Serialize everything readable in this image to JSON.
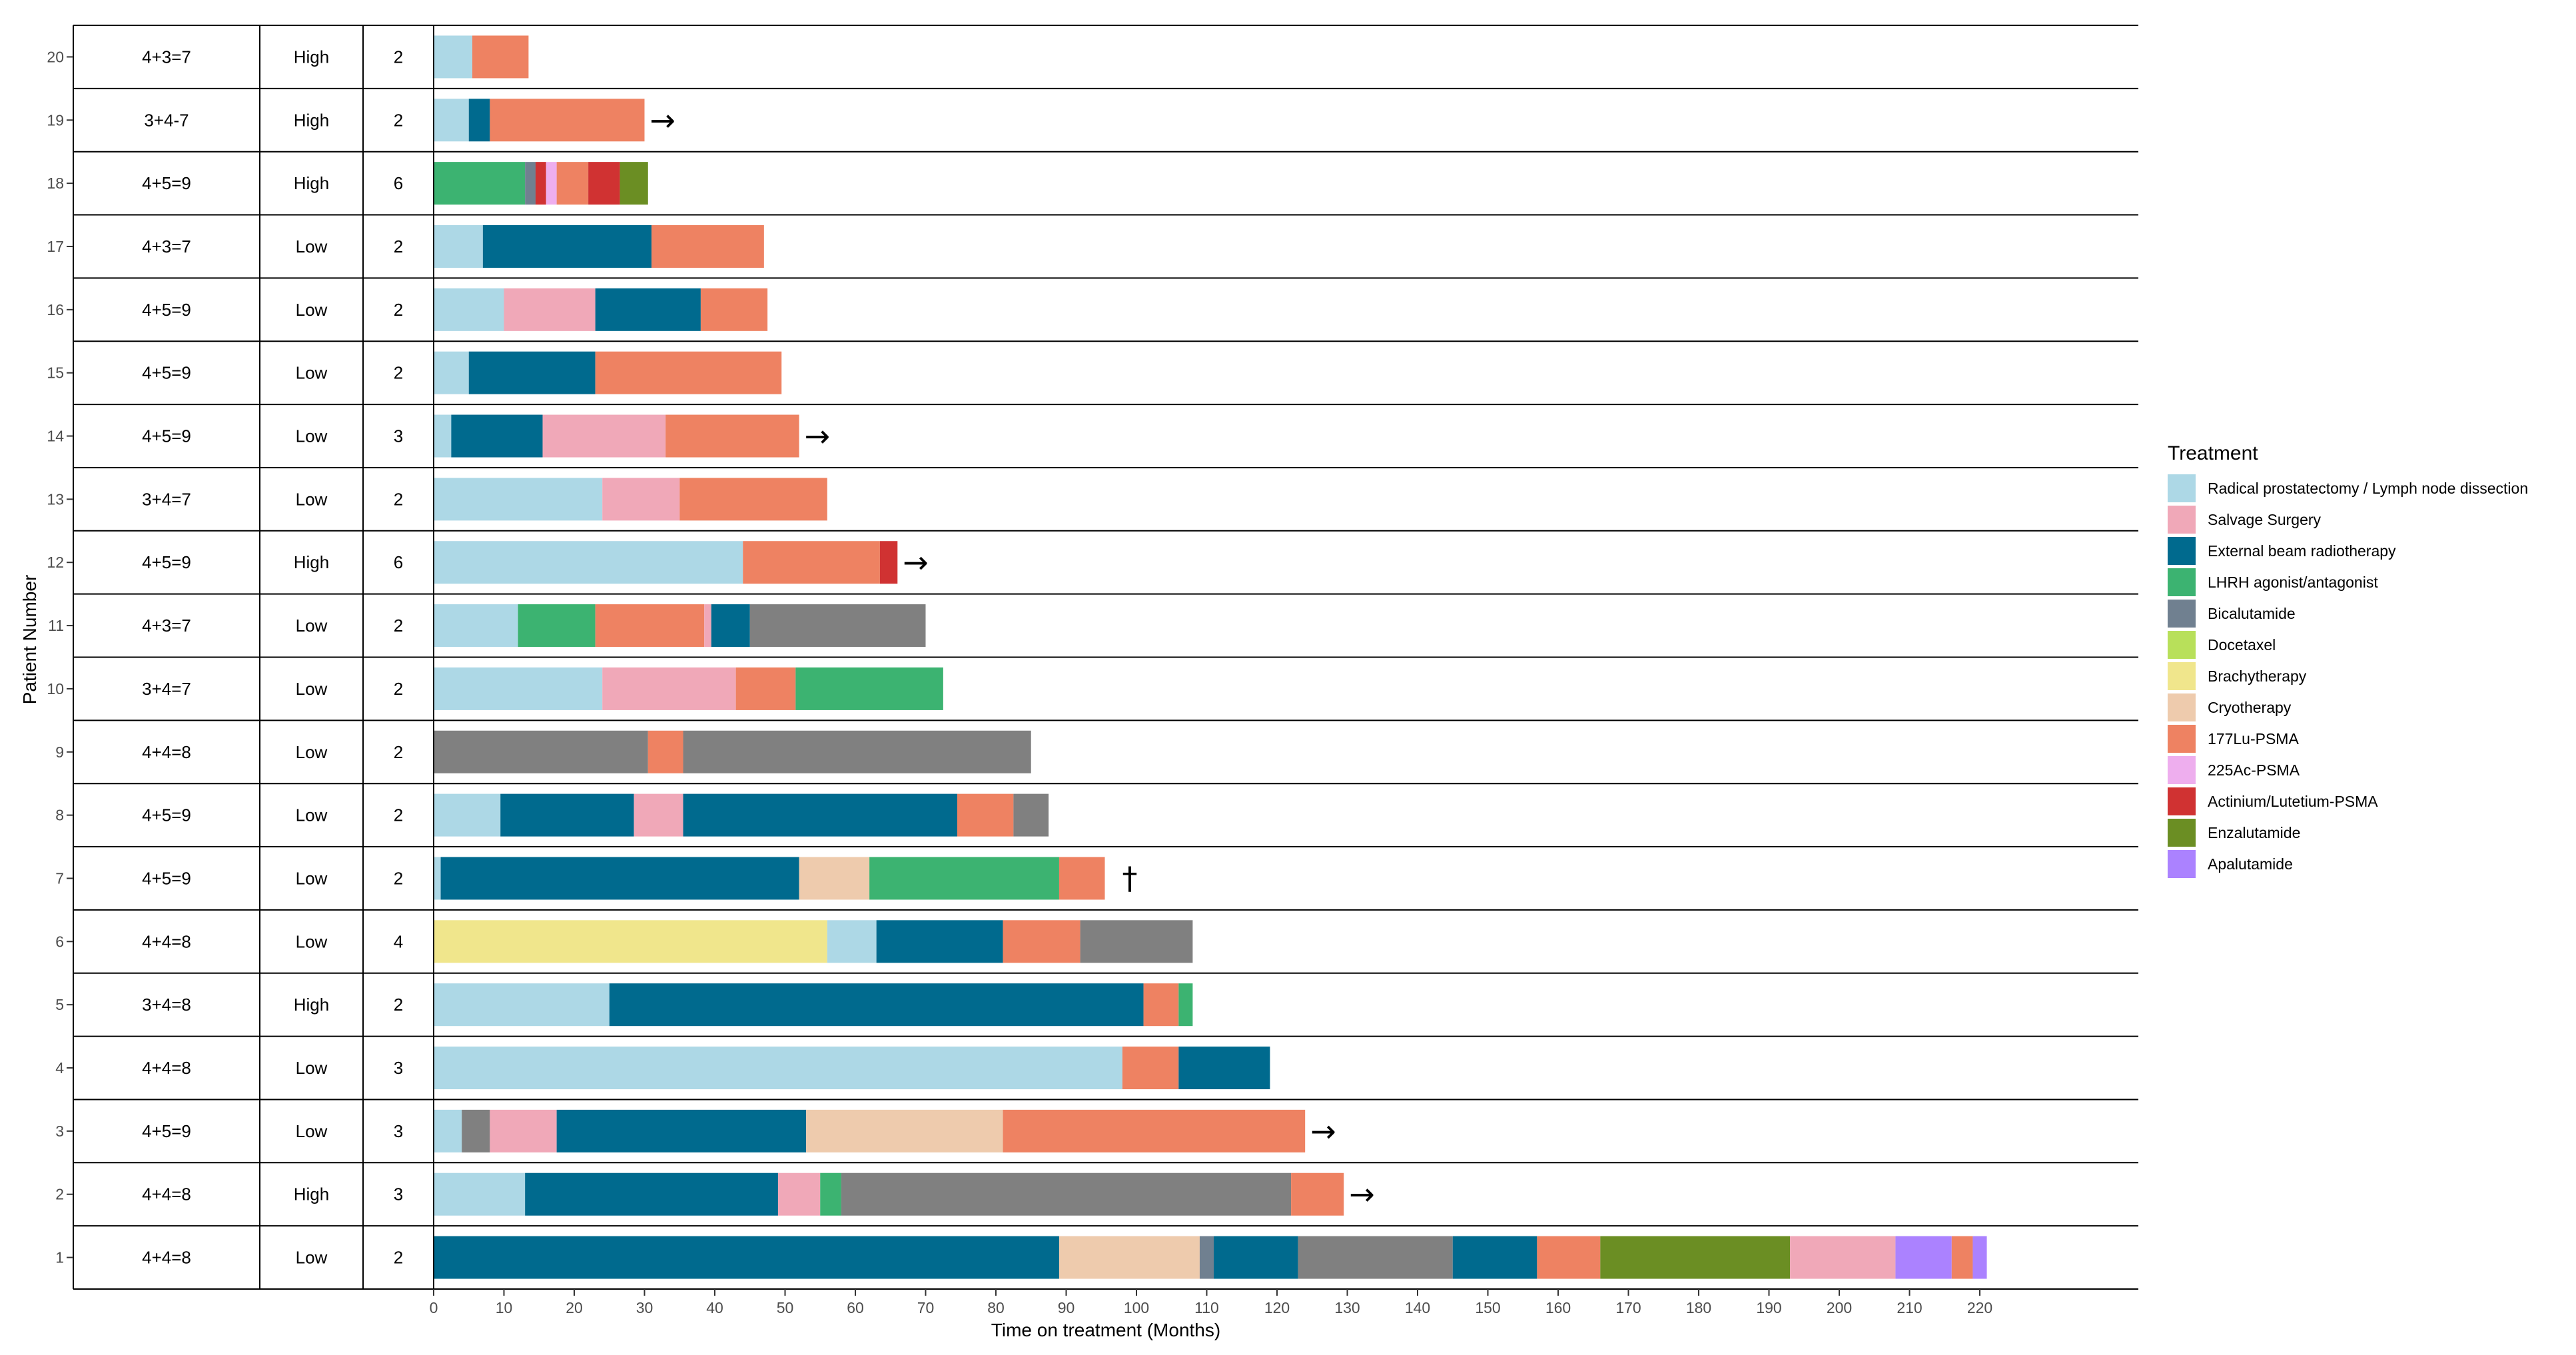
{
  "chart_data": {
    "type": "bar",
    "subtype": "horizontal-stacked-swimmer",
    "title": "",
    "xlabel": "Time on treatment (Months)",
    "ylabel": "Patient Number",
    "xlim": [
      0,
      220
    ],
    "x_ticks": [
      0,
      10,
      20,
      30,
      40,
      50,
      60,
      70,
      80,
      90,
      100,
      110,
      120,
      130,
      140,
      150,
      160,
      170,
      180,
      190,
      200,
      210,
      220
    ],
    "grid": false,
    "legend": {
      "title": "Treatment",
      "placement": "right",
      "entries": [
        {
          "name": "Radical prostatectomy / Lymph node dissection",
          "color": "#ADD8E6"
        },
        {
          "name": "Salvage Surgery",
          "color": "#F0A8B8"
        },
        {
          "name": "External beam radiotherapy",
          "color": "#006A8E"
        },
        {
          "name": "LHRH agonist/antagonist",
          "color": "#3CB371"
        },
        {
          "name": "Bicalutamide",
          "color": "#708090"
        },
        {
          "name": "Docetaxel",
          "color": "#B8E05A"
        },
        {
          "name": "Brachytherapy",
          "color": "#F0E68C"
        },
        {
          "name": "Cryotherapy",
          "color": "#EECBAD"
        },
        {
          "name": "177Lu-PSMA",
          "color": "#EE8262"
        },
        {
          "name": "225Ac-PSMA",
          "color": "#EEAEEE"
        },
        {
          "name": "Actinium/Lutetium-PSMA",
          "color": "#D03232"
        },
        {
          "name": "Enzalutamide",
          "color": "#6B8E23"
        },
        {
          "name": "Apalutamide",
          "color": "#AB82FF"
        }
      ]
    },
    "extra_colors": {
      "gray_segment": "#808080"
    },
    "patients": [
      {
        "id": "20",
        "gleason": "4+3=7",
        "risk": "High",
        "n": "2",
        "marker": "",
        "segments": [
          [
            0,
            5.5,
            "#ADD8E6"
          ],
          [
            5.5,
            13.5,
            "#EE8262"
          ]
        ]
      },
      {
        "id": "19",
        "gleason": "3+4-7",
        "risk": "High",
        "n": "2",
        "marker": "→",
        "segments": [
          [
            0,
            5,
            "#ADD8E6"
          ],
          [
            5,
            8,
            "#006A8E"
          ],
          [
            8,
            30,
            "#EE8262"
          ]
        ]
      },
      {
        "id": "18",
        "gleason": "4+5=9",
        "risk": "High",
        "n": "6",
        "marker": "",
        "segments": [
          [
            0,
            13,
            "#3CB371"
          ],
          [
            13,
            14.5,
            "#708090"
          ],
          [
            14.5,
            16,
            "#D03232"
          ],
          [
            16,
            17.5,
            "#EEAEEE"
          ],
          [
            17.5,
            22,
            "#EE8262"
          ],
          [
            22,
            26.5,
            "#D03232"
          ],
          [
            26.5,
            30.5,
            "#6B8E23"
          ]
        ]
      },
      {
        "id": "17",
        "gleason": "4+3=7",
        "risk": "Low",
        "n": "2",
        "marker": "",
        "segments": [
          [
            0,
            7,
            "#ADD8E6"
          ],
          [
            7,
            31,
            "#006A8E"
          ],
          [
            31,
            47,
            "#EE8262"
          ]
        ]
      },
      {
        "id": "16",
        "gleason": "4+5=9",
        "risk": "Low",
        "n": "2",
        "marker": "",
        "segments": [
          [
            0,
            10,
            "#ADD8E6"
          ],
          [
            10,
            23,
            "#F0A8B8"
          ],
          [
            23,
            38,
            "#006A8E"
          ],
          [
            38,
            47.5,
            "#EE8262"
          ]
        ]
      },
      {
        "id": "15",
        "gleason": "4+5=9",
        "risk": "Low",
        "n": "2",
        "marker": "",
        "segments": [
          [
            0,
            5,
            "#ADD8E6"
          ],
          [
            5,
            23,
            "#006A8E"
          ],
          [
            23,
            49.5,
            "#EE8262"
          ]
        ]
      },
      {
        "id": "14",
        "gleason": "4+5=9",
        "risk": "Low",
        "n": "3",
        "marker": "→",
        "segments": [
          [
            0,
            2.5,
            "#ADD8E6"
          ],
          [
            2.5,
            15.5,
            "#006A8E"
          ],
          [
            15.5,
            33,
            "#F0A8B8"
          ],
          [
            33,
            52,
            "#EE8262"
          ]
        ]
      },
      {
        "id": "13",
        "gleason": "3+4=7",
        "risk": "Low",
        "n": "2",
        "marker": "",
        "segments": [
          [
            0,
            24,
            "#ADD8E6"
          ],
          [
            24,
            35,
            "#F0A8B8"
          ],
          [
            35,
            56,
            "#EE8262"
          ]
        ]
      },
      {
        "id": "12",
        "gleason": "4+5=9",
        "risk": "High",
        "n": "6",
        "marker": "→",
        "segments": [
          [
            0,
            44,
            "#ADD8E6"
          ],
          [
            44,
            63.5,
            "#EE8262"
          ],
          [
            63.5,
            66,
            "#D03232"
          ]
        ]
      },
      {
        "id": "11",
        "gleason": "4+3=7",
        "risk": "Low",
        "n": "2",
        "marker": "",
        "segments": [
          [
            0,
            12,
            "#ADD8E6"
          ],
          [
            12,
            23,
            "#3CB371"
          ],
          [
            23,
            38.5,
            "#EE8262"
          ],
          [
            38.5,
            39.5,
            "#F0A8B8"
          ],
          [
            39.5,
            45,
            "#006A8E"
          ],
          [
            45,
            70,
            "#808080"
          ]
        ]
      },
      {
        "id": "10",
        "gleason": "3+4=7",
        "risk": "Low",
        "n": "2",
        "marker": "",
        "segments": [
          [
            0,
            24,
            "#ADD8E6"
          ],
          [
            24,
            43,
            "#F0A8B8"
          ],
          [
            43,
            51.5,
            "#EE8262"
          ],
          [
            51.5,
            72.5,
            "#3CB371"
          ]
        ]
      },
      {
        "id": "9",
        "gleason": "4+4=8",
        "risk": "Low",
        "n": "2",
        "marker": "",
        "segments": [
          [
            0,
            30.5,
            "#808080"
          ],
          [
            30.5,
            35.5,
            "#EE8262"
          ],
          [
            35.5,
            85,
            "#808080"
          ]
        ]
      },
      {
        "id": "8",
        "gleason": "4+5=9",
        "risk": "Low",
        "n": "2",
        "marker": "",
        "segments": [
          [
            0,
            9.5,
            "#ADD8E6"
          ],
          [
            9.5,
            28.5,
            "#006A8E"
          ],
          [
            28.5,
            35.5,
            "#F0A8B8"
          ],
          [
            35.5,
            74.5,
            "#006A8E"
          ],
          [
            74.5,
            82.5,
            "#EE8262"
          ],
          [
            82.5,
            87.5,
            "#808080"
          ]
        ]
      },
      {
        "id": "7",
        "gleason": "4+5=9",
        "risk": "Low",
        "n": "2",
        "marker": "†",
        "segments": [
          [
            0,
            1,
            "#ADD8E6"
          ],
          [
            1,
            52,
            "#006A8E"
          ],
          [
            52,
            62,
            "#EECBAD"
          ],
          [
            62,
            89,
            "#3CB371"
          ],
          [
            89,
            95.5,
            "#EE8262"
          ]
        ]
      },
      {
        "id": "6",
        "gleason": "4+4=8",
        "risk": "Low",
        "n": "4",
        "marker": "",
        "segments": [
          [
            0,
            56,
            "#F0E68C"
          ],
          [
            56,
            63,
            "#ADD8E6"
          ],
          [
            63,
            81,
            "#006A8E"
          ],
          [
            81,
            92,
            "#EE8262"
          ],
          [
            92,
            108,
            "#808080"
          ]
        ]
      },
      {
        "id": "5",
        "gleason": "3+4=8",
        "risk": "High",
        "n": "2",
        "marker": "",
        "segments": [
          [
            0,
            25,
            "#ADD8E6"
          ],
          [
            25,
            101,
            "#006A8E"
          ],
          [
            101,
            106,
            "#EE8262"
          ],
          [
            106,
            108,
            "#3CB371"
          ]
        ]
      },
      {
        "id": "4",
        "gleason": "4+4=8",
        "risk": "Low",
        "n": "3",
        "marker": "",
        "segments": [
          [
            0,
            98,
            "#ADD8E6"
          ],
          [
            98,
            106,
            "#EE8262"
          ],
          [
            106,
            119,
            "#006A8E"
          ]
        ]
      },
      {
        "id": "3",
        "gleason": "4+5=9",
        "risk": "Low",
        "n": "3",
        "marker": "→",
        "segments": [
          [
            0,
            4,
            "#ADD8E6"
          ],
          [
            4,
            8,
            "#808080"
          ],
          [
            8,
            17.5,
            "#F0A8B8"
          ],
          [
            17.5,
            53,
            "#006A8E"
          ],
          [
            53,
            81,
            "#EECBAD"
          ],
          [
            81,
            124,
            "#EE8262"
          ]
        ]
      },
      {
        "id": "2",
        "gleason": "4+4=8",
        "risk": "High",
        "n": "3",
        "marker": "→",
        "segments": [
          [
            0,
            13,
            "#ADD8E6"
          ],
          [
            13,
            49,
            "#006A8E"
          ],
          [
            49,
            55,
            "#F0A8B8"
          ],
          [
            55,
            58,
            "#3CB371"
          ],
          [
            58,
            122,
            "#808080"
          ],
          [
            122,
            129.5,
            "#EE8262"
          ]
        ]
      },
      {
        "id": "1",
        "gleason": "4+4=8",
        "risk": "Low",
        "n": "2",
        "marker": "",
        "segments": [
          [
            0,
            89,
            "#006A8E"
          ],
          [
            89,
            109,
            "#EECBAD"
          ],
          [
            109,
            111,
            "#708090"
          ],
          [
            111,
            123,
            "#006A8E"
          ],
          [
            123,
            145,
            "#808080"
          ],
          [
            145,
            157,
            "#006A8E"
          ],
          [
            157,
            166,
            "#EE8262"
          ],
          [
            166,
            193,
            "#6B8E23"
          ],
          [
            193,
            208,
            "#F0A8B8"
          ],
          [
            208,
            216,
            "#AB82FF"
          ],
          [
            216,
            219,
            "#EE8262"
          ],
          [
            219,
            221,
            "#AB82FF"
          ]
        ]
      }
    ]
  }
}
